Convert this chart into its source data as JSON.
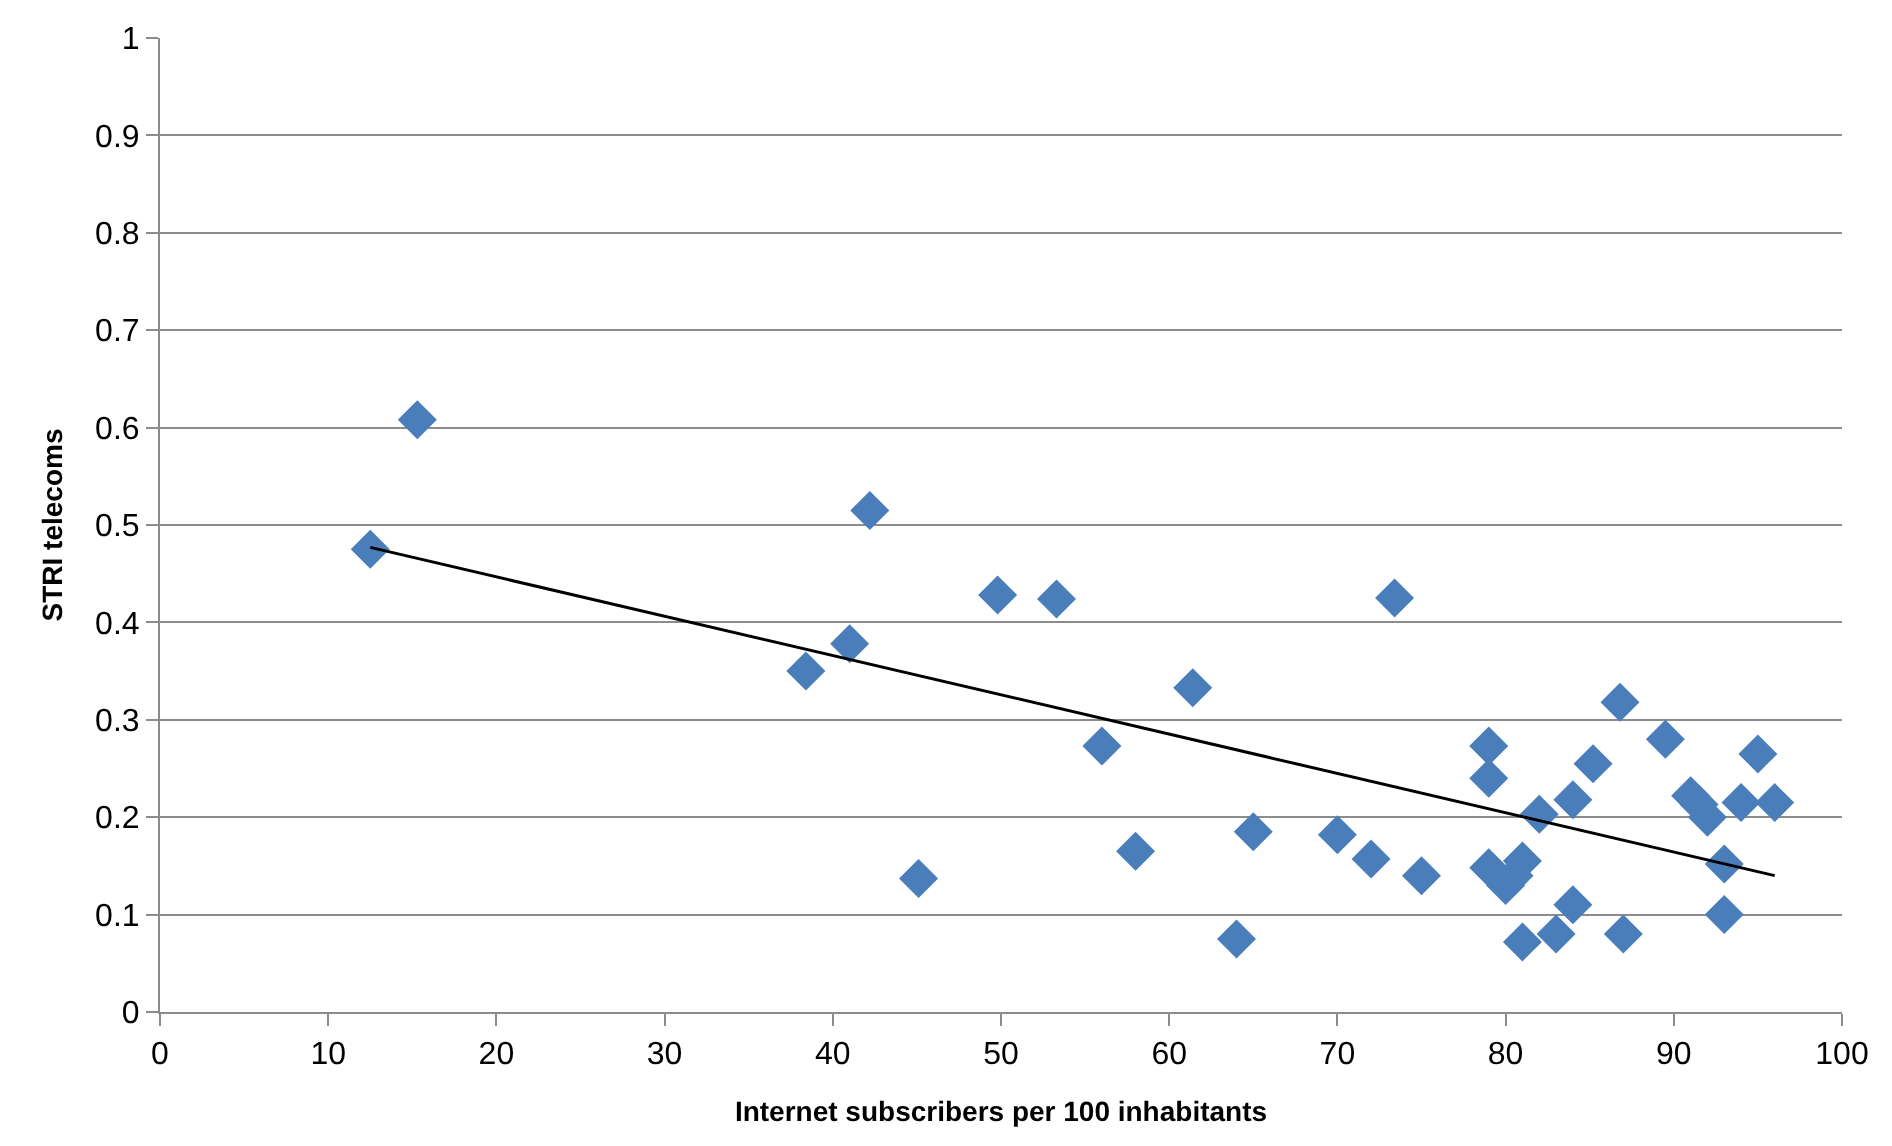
{
  "chart_data": {
    "type": "scatter",
    "xlabel": "Internet subscribers per 100 inhabitants",
    "ylabel": "STRI telecoms",
    "xlim": [
      0,
      100
    ],
    "xticks": [
      0,
      10,
      20,
      30,
      40,
      50,
      60,
      70,
      80,
      90,
      100
    ],
    "ylim": [
      0,
      1
    ],
    "yticks": [
      0,
      0.1,
      0.2,
      0.3,
      0.4,
      0.5,
      0.6,
      0.7,
      0.8,
      0.9,
      1
    ],
    "grid": "y",
    "marker": "diamond",
    "series": [
      {
        "color": "#4a7ebb",
        "x": [
          12.5,
          15.3,
          38.4,
          41,
          42.2,
          45.1,
          49.8,
          53.3,
          56,
          58,
          61.4,
          64,
          65,
          70,
          72,
          73.4,
          75,
          79,
          79,
          79,
          80,
          80.5,
          81,
          81,
          82,
          83,
          84,
          84,
          85.2,
          86.8,
          87,
          89.5,
          91,
          91.5,
          92,
          93,
          93,
          94,
          95,
          96
        ],
        "values": [
          0.475,
          0.608,
          0.35,
          0.378,
          0.515,
          0.137,
          0.428,
          0.424,
          0.273,
          0.165,
          0.333,
          0.075,
          0.185,
          0.182,
          0.157,
          0.425,
          0.14,
          0.273,
          0.24,
          0.148,
          0.13,
          0.14,
          0.155,
          0.072,
          0.203,
          0.08,
          0.218,
          0.11,
          0.255,
          0.318,
          0.08,
          0.28,
          0.222,
          0.213,
          0.2,
          0.152,
          0.1,
          0.215,
          0.265,
          0.215
        ]
      },
      {
        "type": "line",
        "color": "#000000",
        "marker": "none",
        "x": [
          12.5,
          96
        ],
        "values": [
          0.477,
          0.14
        ]
      }
    ]
  }
}
